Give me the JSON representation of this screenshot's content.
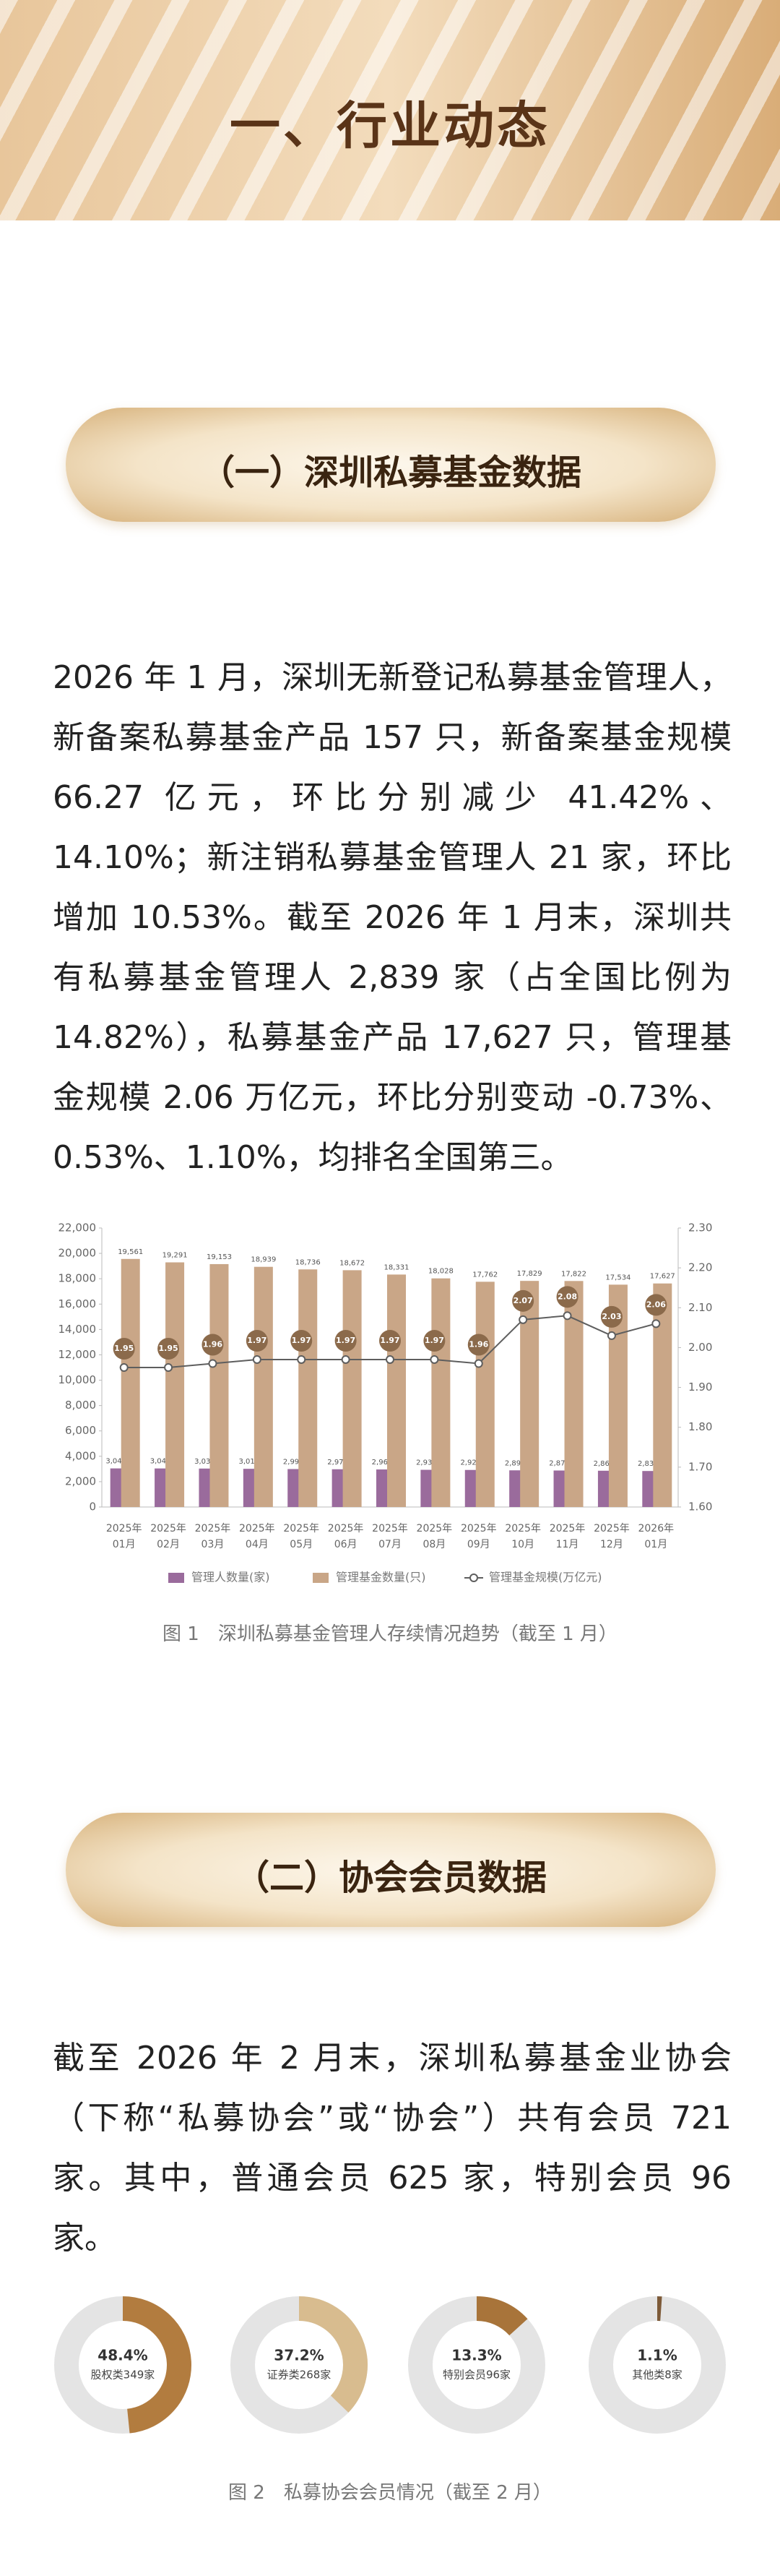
{
  "header": {
    "title": "一、行业动态"
  },
  "sections": [
    {
      "title": "（一）深圳私募基金数据",
      "paragraph": "2026 年 1 月，深圳无新登记私募基金管理人，新备案私募基金产品 157 只，新备案基金规模 66.27 亿元，环比分别减少 41.42%、14.10%；新注销私募基金管理人 21 家，环比增加 10.53%。截至 2026 年 1 月末，深圳共有私募基金管理人 2,839 家（占全国比例为 14.82%），私募基金产品 17,627 只，管理基金规模 2.06 万亿元，环比分别变动 -0.73%、0.53%、1.10%，均排名全国第三。"
    },
    {
      "title": "（二）协会会员数据",
      "paragraph": "截至 2026 年 2 月末，深圳私募基金业协会（下称“私募协会”或“协会”）共有会员 721 家。其中，普通会员 625 家，特别会员 96 家。"
    }
  ],
  "chart_data": [
    {
      "type": "bar",
      "categories": [
        "2025年\n01月",
        "2025年\n02月",
        "2025年\n03月",
        "2025年\n04月",
        "2025年\n05月",
        "2025年\n06月",
        "2025年\n07月",
        "2025年\n08月",
        "2025年\n09月",
        "2025年\n10月",
        "2025年\n11月",
        "2025年\n12月",
        "2026年\n01月"
      ],
      "series": [
        {
          "name": "管理人数量(家)",
          "color": "#9a6b9c",
          "values": [
            3044,
            3040,
            3032,
            3012,
            2993,
            2977,
            2961,
            2933,
            2922,
            2892,
            2878,
            2860,
            2839
          ],
          "value_labels": [
            "3,044",
            "3,040",
            "3,032",
            "3,012",
            "2,993",
            "2,977",
            "2,961",
            "2,933",
            "2,922",
            "2,892",
            "2,878",
            "2,860",
            "2,839"
          ]
        },
        {
          "name": "管理基金数量(只)",
          "color": "#c9a687",
          "values": [
            19561,
            19291,
            19153,
            18939,
            18736,
            18672,
            18331,
            18028,
            17762,
            17829,
            17822,
            17534,
            17627
          ],
          "value_labels": [
            "19,561",
            "19,291",
            "19,153",
            "18,939",
            "18,736",
            "18,672",
            "18,331",
            "18,028",
            "17,762",
            "17,829",
            "17,822",
            "17,534",
            "17,627"
          ]
        },
        {
          "name": "管理基金规模(万亿元)",
          "type": "line",
          "axis": "y2",
          "color": "#5e5e5e",
          "values": [
            1.95,
            1.95,
            1.96,
            1.97,
            1.97,
            1.97,
            1.97,
            1.97,
            1.96,
            2.07,
            2.08,
            2.03,
            2.06
          ]
        }
      ],
      "ylim": [
        0,
        22000
      ],
      "yticks": [
        0,
        {
          "value": 2000,
          "label": "2,000"
        },
        {
          "value": 4000,
          "label": "4,000"
        },
        {
          "value": 6000,
          "label": "6,000"
        },
        {
          "value": 8000,
          "label": "8,000"
        },
        {
          "value": 10000,
          "label": "10,000"
        },
        {
          "value": 12000,
          "label": "12,000"
        },
        {
          "value": 14000,
          "label": "14,000"
        },
        {
          "value": 16000,
          "label": "16,000"
        },
        {
          "value": 18000,
          "label": "18,000"
        },
        {
          "value": 20000,
          "label": "20,000"
        },
        {
          "value": 22000,
          "label": "22,000"
        }
      ],
      "y2lim": [
        1.6,
        2.3
      ],
      "y2ticks": [
        {
          "value": 1.6,
          "label": "1.60"
        },
        {
          "value": 1.7,
          "label": "1.70"
        },
        {
          "value": 1.8,
          "label": "1.80"
        },
        {
          "value": 1.9,
          "label": "1.90"
        },
        {
          "value": 2.0,
          "label": "2.00"
        },
        {
          "value": 2.1,
          "label": "2.10"
        },
        {
          "value": 2.2,
          "label": "2.20"
        },
        {
          "value": 2.3,
          "label": "2.30"
        }
      ],
      "caption": "图 1　深圳私募基金管理人存续情况趋势（截至 1 月）"
    },
    {
      "type": "donut",
      "categories": [
        "股权类349家",
        "证券类268家",
        "特别会员96家",
        "其他类8家"
      ],
      "values": [
        48.4,
        37.2,
        13.3,
        1.1
      ],
      "value_labels": [
        "48.4%",
        "37.2%",
        "13.3%",
        "1.1%"
      ],
      "colors": [
        "#b27c3f",
        "#d8bc8f",
        "#a8743a",
        "#7d5a38"
      ],
      "caption": "图 2　私募协会会员情况（截至 2 月）"
    }
  ]
}
